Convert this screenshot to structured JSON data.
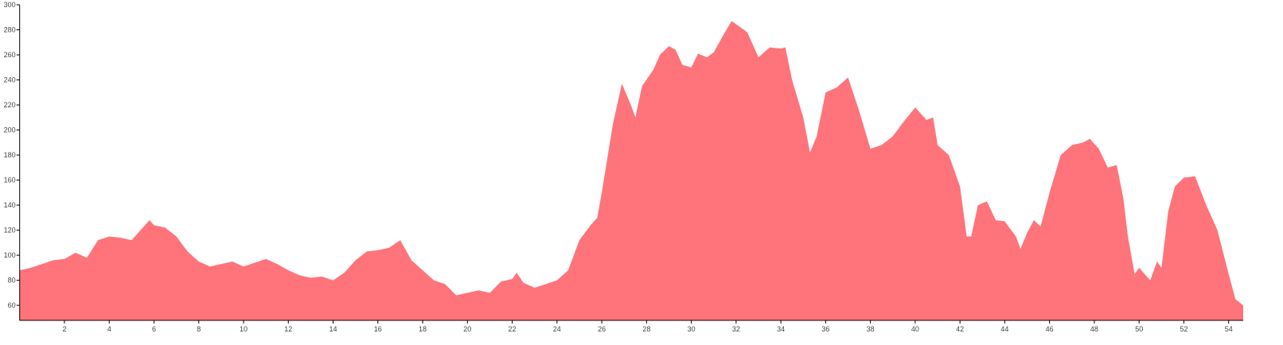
{
  "chart_data": {
    "type": "area",
    "color": "#ff737b",
    "x": [
      0,
      0.5,
      1,
      1.5,
      2,
      2.5,
      3,
      3.5,
      4,
      4.5,
      5,
      5.5,
      5.8,
      6,
      6.5,
      7,
      7.5,
      8,
      8.5,
      9,
      9.5,
      10,
      10.5,
      11,
      11.5,
      12,
      12.5,
      13,
      13.5,
      14,
      14.5,
      15,
      15.5,
      16,
      16.5,
      17,
      17.5,
      18,
      18.5,
      19,
      19.5,
      20,
      20.5,
      21,
      21.5,
      22,
      22.2,
      22.5,
      23,
      23.5,
      24,
      24.5,
      25,
      25.5,
      25.8,
      26,
      26.5,
      26.9,
      27.3,
      27.5,
      27.8,
      28.3,
      28.6,
      29,
      29.3,
      29.6,
      30,
      30.3,
      30.7,
      31,
      31.5,
      31.8,
      32.2,
      32.5,
      33,
      33.5,
      34,
      34.2,
      34.5,
      35,
      35.3,
      35.6,
      36,
      36.5,
      37,
      37.5,
      38,
      38.5,
      39,
      39.5,
      40,
      40.5,
      40.8,
      41,
      41.5,
      42,
      42.3,
      42.5,
      42.8,
      43.2,
      43.6,
      44,
      44.5,
      44.7,
      45,
      45.3,
      45.6,
      46,
      46.5,
      47,
      47.5,
      47.8,
      48.2,
      48.6,
      49,
      49.3,
      49.5,
      49.8,
      50,
      50.5,
      50.8,
      51,
      51.3,
      51.6,
      52,
      52.5,
      53,
      53.5,
      54,
      54.3,
      54.65
    ],
    "values": [
      88,
      90,
      93,
      96,
      97,
      102,
      98,
      112,
      115,
      114,
      112,
      122,
      128,
      124,
      122,
      115,
      103,
      95,
      91,
      93,
      95,
      91,
      94,
      97,
      93,
      88,
      84,
      82,
      83,
      80,
      86,
      96,
      103,
      104,
      106,
      112,
      96,
      88,
      80,
      77,
      68,
      70,
      72,
      70,
      79,
      81,
      86,
      78,
      74,
      77,
      80,
      88,
      112,
      124,
      130,
      150,
      205,
      237,
      220,
      210,
      235,
      248,
      260,
      267,
      264,
      252,
      250,
      261,
      258,
      262,
      278,
      287,
      282,
      278,
      258,
      266,
      265,
      266,
      240,
      210,
      182,
      195,
      230,
      234,
      242,
      215,
      185,
      188,
      195,
      207,
      218,
      208,
      210,
      188,
      180,
      155,
      115,
      115,
      140,
      143,
      128,
      127,
      115,
      105,
      118,
      128,
      123,
      150,
      180,
      188,
      190,
      193,
      185,
      170,
      172,
      145,
      115,
      85,
      90,
      80,
      95,
      90,
      135,
      155,
      162,
      163,
      140,
      120,
      85,
      65,
      60
    ],
    "xlim": [
      0,
      54.65
    ],
    "ylim": [
      48,
      300
    ],
    "xticks": [
      2,
      4,
      6,
      8,
      10,
      12,
      14,
      16,
      18,
      20,
      22,
      24,
      26,
      28,
      30,
      32,
      34,
      36,
      38,
      40,
      42,
      44,
      46,
      48,
      50,
      52,
      54
    ],
    "yticks": [
      60,
      80,
      100,
      120,
      140,
      160,
      180,
      200,
      220,
      240,
      260,
      280,
      300
    ]
  }
}
